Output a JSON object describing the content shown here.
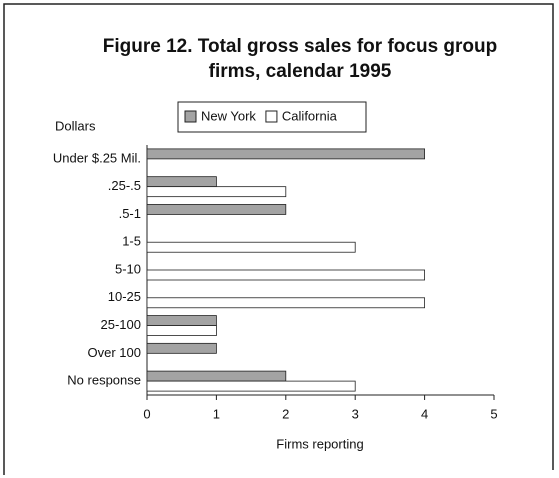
{
  "chart_data": {
    "type": "bar",
    "orientation": "horizontal",
    "title": "Figure 12. Total gross sales for focus group firms, calendar 1995",
    "title_lines": [
      "Figure 12. Total gross sales for focus group",
      "firms, calendar 1995"
    ],
    "y_axis_label": "Dollars",
    "x_axis_label": "Firms reporting",
    "categories": [
      "Under $.25 Mil.",
      ".25-.5",
      ".5-1",
      "1-5",
      "5-10",
      "10-25",
      "25-100",
      "Over 100",
      "No response"
    ],
    "series": [
      {
        "name": "New York",
        "color": "#a3a3a3",
        "values": [
          4,
          1,
          2,
          0,
          0,
          0,
          1,
          1,
          2
        ]
      },
      {
        "name": "California",
        "color": "#ffffff",
        "values": [
          0,
          2,
          0,
          3,
          4,
          4,
          1,
          0,
          3
        ]
      }
    ],
    "xlim": [
      0,
      5
    ],
    "xticks": [
      0,
      1,
      2,
      3,
      4,
      5
    ],
    "legend": "top"
  }
}
